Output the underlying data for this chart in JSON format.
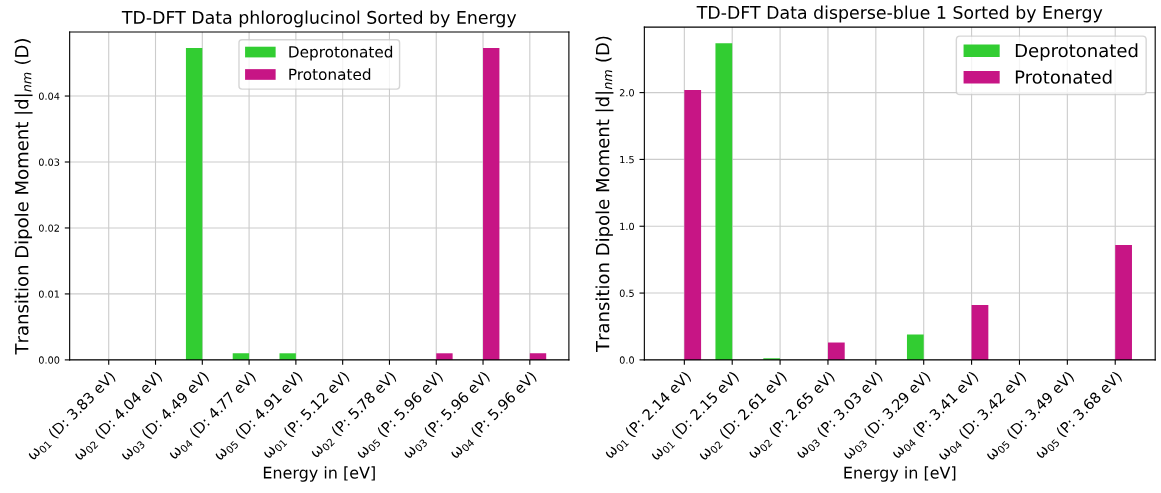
{
  "chart_data": [
    {
      "type": "bar",
      "title": "TD-DFT Data phloroglucinol Sorted by Energy",
      "xlabel": "Energy in [eV]",
      "ylabel": "Transition Dipole Moment |d|$_{nm}$ (D)",
      "categories": [
        "ω$_{01}$ (D: 3.83 eV)",
        "ω$_{02}$ (D: 4.04 eV)",
        "ω$_{03}$ (D: 4.49 eV)",
        "ω$_{04}$ (D: 4.77 eV)",
        "ω$_{05}$ (D: 4.91 eV)",
        "ω$_{01}$ (P: 5.12 eV)",
        "ω$_{02}$ (P: 5.78 eV)",
        "ω$_{05}$ (P: 5.96 eV)",
        "ω$_{03}$ (P: 5.96 eV)",
        "ω$_{04}$ (P: 5.96 eV)"
      ],
      "series": [
        {
          "name": "Deprotonated",
          "color": "#32cd32",
          "values": [
            0,
            0,
            0.0473,
            0.001,
            0.001,
            0,
            0,
            0,
            0,
            0
          ]
        },
        {
          "name": "Protonated",
          "color": "#c71585",
          "values": [
            0,
            0,
            0,
            0,
            0,
            0,
            0,
            0.001,
            0.0473,
            0.001
          ]
        }
      ],
      "ylim": [
        0,
        0.0497
      ],
      "yticks": [
        {
          "value": 0,
          "label": "0.00"
        },
        {
          "value": 0.01,
          "label": "0.01"
        },
        {
          "value": 0.02,
          "label": "0.02"
        },
        {
          "value": 0.03,
          "label": "0.03"
        },
        {
          "value": 0.04,
          "label": "0.04"
        }
      ],
      "grid": true,
      "legend": "top center"
    },
    {
      "type": "bar",
      "title": "TD-DFT Data disperse-blue 1 Sorted by Energy",
      "xlabel": "Energy in [eV]",
      "ylabel": "Transition Dipole Moment |d|$_{nm}$ (D)",
      "categories": [
        "ω$_{01}$ (P: 2.14 eV)",
        "ω$_{01}$ (D: 2.15 eV)",
        "ω$_{02}$ (D: 2.61 eV)",
        "ω$_{02}$ (P: 2.65 eV)",
        "ω$_{03}$ (P: 3.03 eV)",
        "ω$_{03}$ (D: 3.29 eV)",
        "ω$_{04}$ (P: 3.41 eV)",
        "ω$_{04}$ (D: 3.42 eV)",
        "ω$_{05}$ (D: 3.49 eV)",
        "ω$_{05}$ (P: 3.68 eV)"
      ],
      "series": [
        {
          "name": "Deprotonated",
          "color": "#32cd32",
          "values": [
            0,
            2.37,
            0.012,
            0,
            0,
            0.19,
            0,
            0,
            0,
            0
          ]
        },
        {
          "name": "Protonated",
          "color": "#c71585",
          "values": [
            2.02,
            0,
            0,
            0.13,
            0,
            0,
            0.41,
            0,
            0,
            0.86
          ]
        }
      ],
      "ylim": [
        0,
        2.49
      ],
      "yticks": [
        {
          "value": 0,
          "label": "0.0"
        },
        {
          "value": 0.5,
          "label": "0.5"
        },
        {
          "value": 1.0,
          "label": "1.0"
        },
        {
          "value": 1.5,
          "label": "1.5"
        },
        {
          "value": 2.0,
          "label": "2.0"
        }
      ],
      "grid": true,
      "legend": "top right"
    }
  ]
}
